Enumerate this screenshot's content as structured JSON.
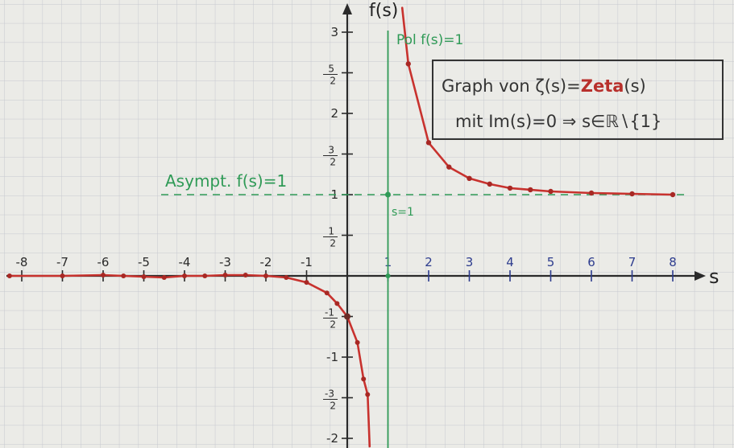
{
  "chart_data": {
    "type": "line",
    "title_line1_prefix": "Graph von ",
    "title_zeta_symbol": "ζ(s)",
    "title_equals": "=",
    "title_zeta_word": "Zeta",
    "title_zeta_arg": "(s)",
    "title_line2": "mit Im(s)=0 ⇒ s∈ℝ∖{1}",
    "xlabel": "s",
    "ylabel": "f(s)",
    "pole_label": "Pol f(s)=1",
    "pole_axis_label": "s=1",
    "asymptote_label": "Asympt. f(s)=1",
    "xlim": [
      -8.3,
      8.7
    ],
    "ylim": [
      -2.05,
      3.15
    ],
    "x_tick_labels": [
      {
        "value": -8,
        "label": "-8"
      },
      {
        "value": -7,
        "label": "-7"
      },
      {
        "value": -6,
        "label": "-6"
      },
      {
        "value": -5,
        "label": "-5"
      },
      {
        "value": -4,
        "label": "-4"
      },
      {
        "value": -3,
        "label": "-3"
      },
      {
        "value": -2,
        "label": "-2"
      },
      {
        "value": -1,
        "label": "-1"
      },
      {
        "value": 1,
        "label": "1"
      },
      {
        "value": 2,
        "label": "2"
      },
      {
        "value": 3,
        "label": "3"
      },
      {
        "value": 4,
        "label": "4"
      },
      {
        "value": 5,
        "label": "5"
      },
      {
        "value": 6,
        "label": "6"
      },
      {
        "value": 7,
        "label": "7"
      },
      {
        "value": 8,
        "label": "8"
      }
    ],
    "y_tick_labels": [
      {
        "value": 3,
        "label": "3"
      },
      {
        "value": 2.5,
        "num": "5",
        "den": "2"
      },
      {
        "value": 2,
        "label": "2"
      },
      {
        "value": 1.5,
        "num": "3",
        "den": "2"
      },
      {
        "value": 1,
        "label": "1"
      },
      {
        "value": 0.5,
        "num": "1",
        "den": "2"
      },
      {
        "value": -0.5,
        "num": "-1",
        "den": "2"
      },
      {
        "value": -1,
        "label": "-1"
      },
      {
        "value": -1.5,
        "num": "-3",
        "den": "2"
      },
      {
        "value": -2,
        "label": "-2"
      }
    ],
    "series": [
      {
        "points_right": [
          [
            1.35,
            3.3
          ],
          [
            1.5,
            2.61
          ],
          [
            2,
            1.64
          ],
          [
            2.5,
            1.34
          ],
          [
            3,
            1.2
          ],
          [
            3.5,
            1.13
          ],
          [
            4,
            1.08
          ],
          [
            4.5,
            1.06
          ],
          [
            5,
            1.04
          ],
          [
            6,
            1.02
          ],
          [
            7,
            1.01
          ],
          [
            8,
            1.0
          ]
        ],
        "points_left": [
          [
            -8.3,
            0.0
          ],
          [
            -7,
            0.0
          ],
          [
            -6,
            0.01
          ],
          [
            -5.5,
            0.0
          ],
          [
            -5,
            -0.01
          ],
          [
            -4.5,
            -0.02
          ],
          [
            -4,
            0.0
          ],
          [
            -3.5,
            0.0
          ],
          [
            -3,
            0.01
          ],
          [
            -2.5,
            0.01
          ],
          [
            -2,
            0.0
          ],
          [
            -1.5,
            -0.02
          ],
          [
            -1,
            -0.08
          ],
          [
            -0.5,
            -0.21
          ],
          [
            -0.25,
            -0.34
          ],
          [
            0,
            -0.5
          ],
          [
            0.25,
            -0.82
          ],
          [
            0.4,
            -1.27
          ],
          [
            0.5,
            -1.46
          ],
          [
            0.55,
            -2.1
          ]
        ]
      }
    ],
    "colors": {
      "curve": "#c8322e",
      "pole": "#2f9a56",
      "axes": "#2a2a2a",
      "positive_ticks": "#2d3c8e"
    }
  }
}
